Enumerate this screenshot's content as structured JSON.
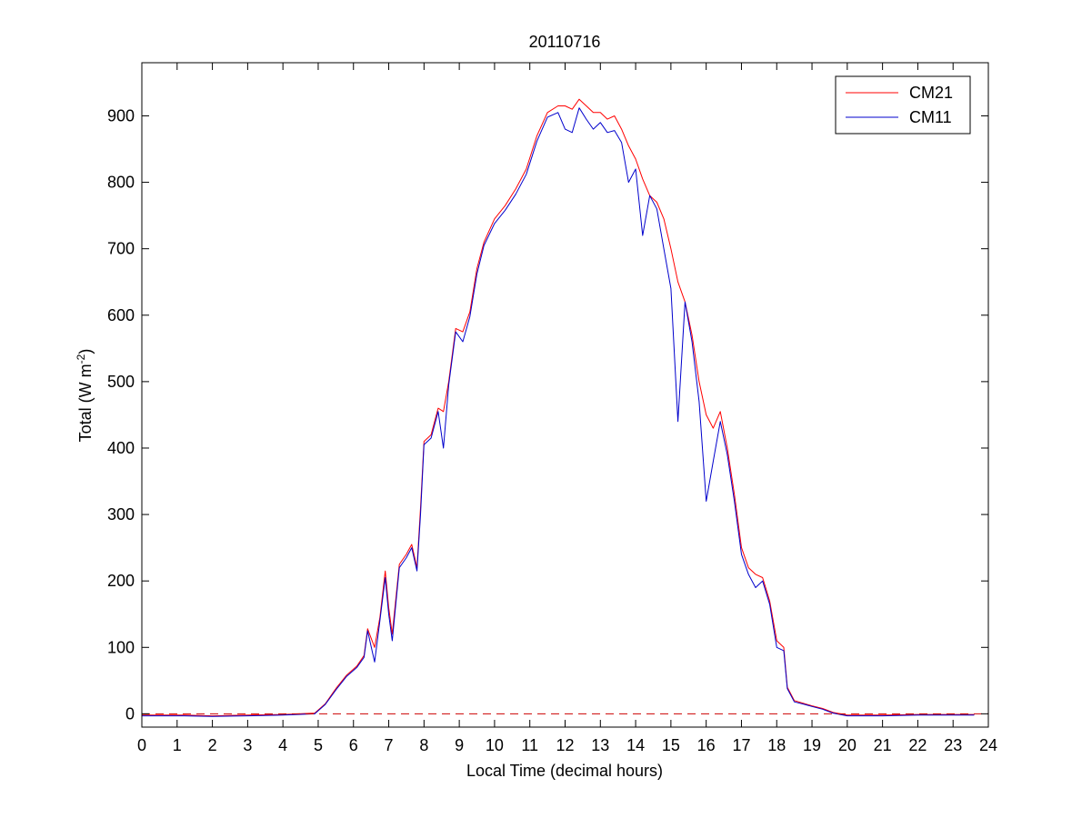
{
  "chart_data": {
    "type": "line",
    "title": "20110716",
    "xlabel": "Local Time (decimal hours)",
    "ylabel": {
      "prefix": "Total (W m",
      "superscript": "-2",
      "suffix": ")"
    },
    "xlim": [
      0,
      24
    ],
    "ylim": [
      -20,
      980
    ],
    "x_ticks": [
      0,
      1,
      2,
      3,
      4,
      5,
      6,
      7,
      8,
      9,
      10,
      11,
      12,
      13,
      14,
      15,
      16,
      17,
      18,
      19,
      20,
      21,
      22,
      23,
      24
    ],
    "y_ticks": [
      0,
      100,
      200,
      300,
      400,
      500,
      600,
      700,
      800,
      900
    ],
    "grid": false,
    "legend_position": "top-right",
    "reference_line": {
      "y": 0,
      "style": "dashed",
      "color": "#cc0000"
    },
    "series": [
      {
        "name": "CM21",
        "color": "#ff0000",
        "x": [
          0,
          1.2,
          2,
          3,
          4,
          4.9,
          5.2,
          5.5,
          5.8,
          6.1,
          6.3,
          6.4,
          6.6,
          6.75,
          6.9,
          7.0,
          7.1,
          7.3,
          7.5,
          7.65,
          7.8,
          7.9,
          8.0,
          8.2,
          8.4,
          8.55,
          8.7,
          8.9,
          9.1,
          9.3,
          9.5,
          9.7,
          10.0,
          10.3,
          10.6,
          10.9,
          11.2,
          11.5,
          11.8,
          12.0,
          12.2,
          12.4,
          12.6,
          12.8,
          13.0,
          13.2,
          13.4,
          13.6,
          13.8,
          14.0,
          14.2,
          14.4,
          14.6,
          14.8,
          15.0,
          15.2,
          15.4,
          15.6,
          15.8,
          16.0,
          16.2,
          16.4,
          16.6,
          16.8,
          17.0,
          17.2,
          17.4,
          17.6,
          17.8,
          18.0,
          18.2,
          18.3,
          18.5,
          18.8,
          19.0,
          19.3,
          19.6,
          20.0,
          20.5,
          21,
          22,
          23,
          23.6
        ],
        "values": [
          -2,
          -2,
          -3,
          -2,
          -1,
          1,
          15,
          38,
          58,
          72,
          88,
          128,
          100,
          145,
          215,
          160,
          120,
          225,
          240,
          255,
          220,
          310,
          410,
          420,
          460,
          455,
          500,
          580,
          575,
          605,
          670,
          710,
          745,
          765,
          790,
          820,
          870,
          905,
          915,
          915,
          910,
          925,
          915,
          905,
          905,
          895,
          900,
          880,
          855,
          835,
          805,
          780,
          770,
          745,
          700,
          650,
          620,
          570,
          500,
          450,
          430,
          455,
          400,
          330,
          250,
          220,
          210,
          205,
          170,
          110,
          100,
          40,
          20,
          15,
          12,
          8,
          2,
          -2,
          -2,
          -2,
          -1,
          -1,
          -1
        ]
      },
      {
        "name": "CM11",
        "color": "#0000cc",
        "x": [
          0,
          1.2,
          2,
          3,
          4,
          4.9,
          5.2,
          5.5,
          5.8,
          6.1,
          6.3,
          6.4,
          6.6,
          6.75,
          6.9,
          7.0,
          7.1,
          7.3,
          7.5,
          7.65,
          7.8,
          7.9,
          8.0,
          8.2,
          8.4,
          8.55,
          8.7,
          8.9,
          9.1,
          9.3,
          9.5,
          9.7,
          10.0,
          10.3,
          10.6,
          10.9,
          11.2,
          11.5,
          11.8,
          12.0,
          12.2,
          12.4,
          12.6,
          12.8,
          13.0,
          13.2,
          13.4,
          13.6,
          13.8,
          14.0,
          14.2,
          14.4,
          14.6,
          14.8,
          15.0,
          15.2,
          15.4,
          15.6,
          15.8,
          16.0,
          16.2,
          16.4,
          16.6,
          16.8,
          17.0,
          17.2,
          17.4,
          17.6,
          17.8,
          18.0,
          18.2,
          18.3,
          18.5,
          18.8,
          19.0,
          19.3,
          19.6,
          20.0,
          20.5,
          21,
          22,
          23,
          23.6
        ],
        "values": [
          -3,
          -3,
          -4,
          -3,
          -2,
          0,
          14,
          36,
          56,
          70,
          85,
          125,
          78,
          140,
          205,
          150,
          110,
          220,
          235,
          250,
          215,
          300,
          405,
          415,
          455,
          400,
          495,
          575,
          560,
          598,
          662,
          705,
          738,
          758,
          782,
          812,
          862,
          898,
          905,
          880,
          875,
          912,
          895,
          880,
          890,
          875,
          878,
          860,
          800,
          820,
          720,
          780,
          760,
          700,
          640,
          440,
          620,
          560,
          470,
          320,
          380,
          440,
          390,
          320,
          240,
          210,
          190,
          200,
          165,
          100,
          95,
          38,
          18,
          14,
          11,
          7,
          1,
          -3,
          -3,
          -3,
          -2,
          -2,
          -2
        ]
      }
    ]
  }
}
